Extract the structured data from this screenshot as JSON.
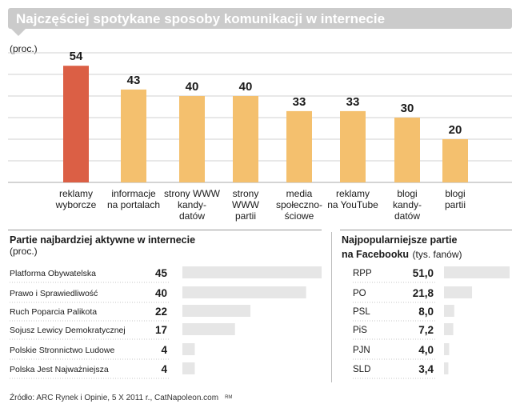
{
  "header": {
    "title": "Najczęściej spotykane sposoby komunikacji w internecie"
  },
  "top_chart": {
    "unit": "(proc.)"
  },
  "parties": {
    "title": "Partie najbardziej aktywne w internecie",
    "unit": "(proc.)"
  },
  "facebook": {
    "title_line1": "Najpopularniejsze partie",
    "title_line2": "na Facebooku",
    "unit": "(tys. fanów)"
  },
  "footer": {
    "source": "Źródło: ARC Rynek i Opinie, 5 X 2011 r., CatNapoleon.com",
    "mark": "RM"
  },
  "colors": {
    "highlight": "#db5f45",
    "bar": "#f4c06e",
    "light_bar": "#e6e6e6",
    "grid": "#d2d2d2",
    "title_bg": "#cbcbcb"
  },
  "chart_data": [
    {
      "type": "bar",
      "title": "Najczęściej spotykane sposoby komunikacji w internecie",
      "ylabel": "(proc.)",
      "ylim": [
        0,
        60
      ],
      "grid": true,
      "categories": [
        [
          "reklamy",
          "wyborcze"
        ],
        [
          "informacje",
          "na portalach"
        ],
        [
          "strony WWW",
          "kandy-",
          "datów"
        ],
        [
          "strony",
          "WWW",
          "partii"
        ],
        [
          "media",
          "społeczno-",
          "ściowe"
        ],
        [
          "reklamy",
          "na YouTube"
        ],
        [
          "blogi",
          "kandy-",
          "datów"
        ],
        [
          "blogi",
          "partii"
        ]
      ],
      "values": [
        54,
        43,
        40,
        40,
        33,
        33,
        30,
        20
      ],
      "highlight_index": 0
    },
    {
      "type": "bar",
      "title": "Partie najbardziej aktywne w internecie",
      "orientation": "horizontal",
      "unit": "(proc.)",
      "categories": [
        "Platforma Obywatelska",
        "Prawo i Sprawiedliwość",
        "Ruch Poparcia Palikota",
        "Sojusz Lewicy Demokratycznej",
        "Polskie Stronnictwo Ludowe",
        "Polska Jest Najważniejsza"
      ],
      "values": [
        45,
        40,
        22,
        17,
        4,
        4
      ],
      "labels": [
        "45",
        "40",
        "22",
        "17",
        "4",
        "4"
      ]
    },
    {
      "type": "bar",
      "title": "Najpopularniejsze partie na Facebooku",
      "orientation": "horizontal",
      "unit": "(tys. fanów)",
      "categories": [
        "RPP",
        "PO",
        "PSL",
        "PiS",
        "PJN",
        "SLD"
      ],
      "values": [
        51.0,
        21.8,
        8.0,
        7.2,
        4.0,
        3.4
      ],
      "labels": [
        "51,0",
        "21,8",
        "8,0",
        "7,2",
        "4,0",
        "3,4"
      ]
    }
  ]
}
